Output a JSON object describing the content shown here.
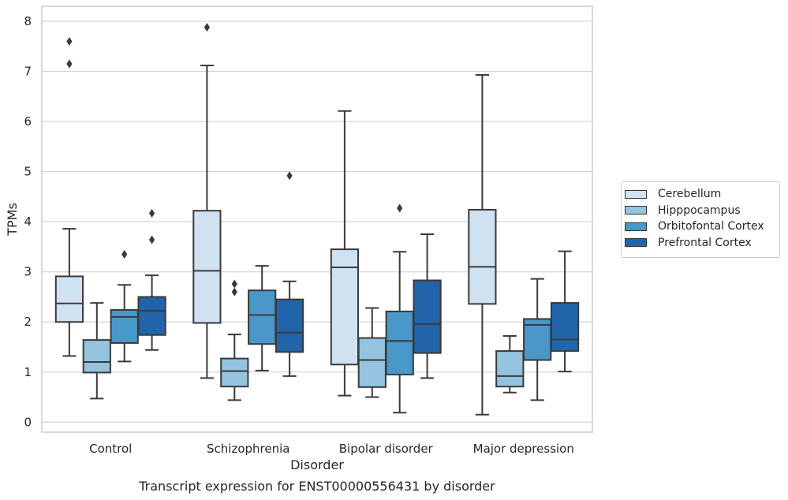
{
  "chart_data": {
    "type": "boxplot",
    "xlabel": "Disorder",
    "ylabel": "TPMs",
    "caption": "Transcript expression for ENST00000556431 by disorder",
    "ylim": [
      -0.2,
      8.3
    ],
    "yticks": [
      "0",
      "1",
      "2",
      "3",
      "4",
      "5",
      "6",
      "7",
      "8"
    ],
    "categories": [
      "Control",
      "Schizophrenia",
      "Bipolar disorder",
      "Major depression"
    ],
    "grid": "horizontal",
    "legend_position": "right",
    "series": [
      {
        "name": "Cerebellum",
        "color": "#d0e1f2",
        "boxes": [
          {
            "whislo": 1.32,
            "q1": 2.0,
            "med": 2.37,
            "q3": 2.91,
            "whishi": 3.86,
            "fliers": [
              7.15,
              7.6
            ]
          },
          {
            "whislo": 0.88,
            "q1": 1.98,
            "med": 3.02,
            "q3": 4.22,
            "whishi": 7.12,
            "fliers": [
              7.88
            ]
          },
          {
            "whislo": 0.53,
            "q1": 1.15,
            "med": 3.09,
            "q3": 3.45,
            "whishi": 6.21,
            "fliers": []
          },
          {
            "whislo": 0.15,
            "q1": 2.36,
            "med": 3.1,
            "q3": 4.24,
            "whishi": 6.93,
            "fliers": []
          }
        ]
      },
      {
        "name": "Hipppocampus",
        "color": "#94c4df",
        "boxes": [
          {
            "whislo": 0.47,
            "q1": 0.99,
            "med": 1.2,
            "q3": 1.64,
            "whishi": 2.38,
            "fliers": []
          },
          {
            "whislo": 0.44,
            "q1": 0.71,
            "med": 1.02,
            "q3": 1.27,
            "whishi": 1.75,
            "fliers": [
              2.6,
              2.76
            ]
          },
          {
            "whislo": 0.5,
            "q1": 0.7,
            "med": 1.24,
            "q3": 1.68,
            "whishi": 2.28,
            "fliers": []
          },
          {
            "whislo": 0.59,
            "q1": 0.71,
            "med": 0.92,
            "q3": 1.42,
            "whishi": 1.72,
            "fliers": []
          }
        ]
      },
      {
        "name": "Orbitofontal Cortex",
        "color": "#4a98c9",
        "boxes": [
          {
            "whislo": 1.21,
            "q1": 1.58,
            "med": 2.1,
            "q3": 2.24,
            "whishi": 2.74,
            "fliers": [
              3.35
            ]
          },
          {
            "whislo": 1.03,
            "q1": 1.56,
            "med": 2.14,
            "q3": 2.63,
            "whishi": 3.12,
            "fliers": []
          },
          {
            "whislo": 0.19,
            "q1": 0.95,
            "med": 1.62,
            "q3": 2.21,
            "whishi": 3.4,
            "fliers": [
              4.27
            ]
          },
          {
            "whislo": 0.44,
            "q1": 1.24,
            "med": 1.94,
            "q3": 2.06,
            "whishi": 2.86,
            "fliers": []
          }
        ]
      },
      {
        "name": "Prefrontal Cortex",
        "color": "#2264a9",
        "boxes": [
          {
            "whislo": 1.44,
            "q1": 1.74,
            "med": 2.22,
            "q3": 2.5,
            "whishi": 2.93,
            "fliers": [
              3.64,
              4.17
            ]
          },
          {
            "whislo": 0.92,
            "q1": 1.4,
            "med": 1.79,
            "q3": 2.45,
            "whishi": 2.81,
            "fliers": [
              4.92
            ]
          },
          {
            "whislo": 0.88,
            "q1": 1.38,
            "med": 1.96,
            "q3": 2.83,
            "whishi": 3.75,
            "fliers": []
          },
          {
            "whislo": 1.01,
            "q1": 1.42,
            "med": 1.65,
            "q3": 2.38,
            "whishi": 3.41,
            "fliers": []
          }
        ]
      }
    ]
  }
}
